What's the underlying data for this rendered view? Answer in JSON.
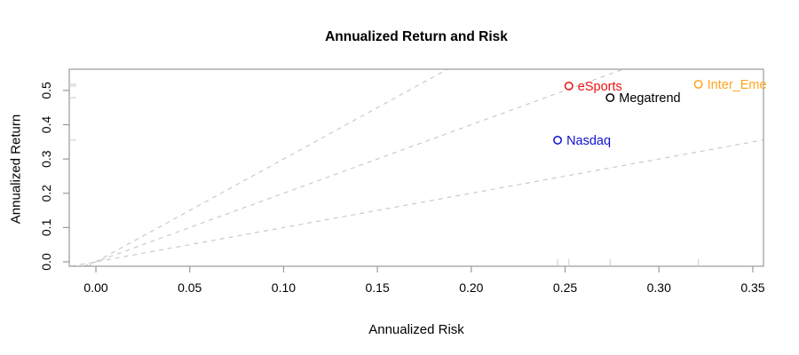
{
  "chart_data": {
    "type": "scatter",
    "title": "Annualized Return and Risk",
    "xlabel": "Annualized Risk",
    "ylabel": "Annualized Return",
    "xlim": [
      -0.0142,
      0.3557
    ],
    "ylim": [
      -0.013,
      0.562
    ],
    "grid": false,
    "legend": "none",
    "x_ticks": {
      "values": [
        0.0,
        0.05,
        0.1,
        0.15,
        0.2,
        0.25,
        0.3,
        0.35
      ],
      "labels": [
        "0.00",
        "0.05",
        "0.10",
        "0.15",
        "0.20",
        "0.25",
        "0.30",
        "0.35"
      ]
    },
    "y_ticks": {
      "values": [
        0.0,
        0.1,
        0.2,
        0.3,
        0.4,
        0.5
      ],
      "labels": [
        "0.0",
        "0.1",
        "0.2",
        "0.3",
        "0.4",
        "0.5"
      ]
    },
    "points": [
      {
        "name": "eSports",
        "x": 0.252,
        "y": 0.513,
        "color": "#ee1111"
      },
      {
        "name": "Megatrend",
        "x": 0.274,
        "y": 0.479,
        "color": "#000000"
      },
      {
        "name": "Nasdaq",
        "x": 0.246,
        "y": 0.355,
        "color": "#1111cd"
      },
      {
        "name": "Inter_Eme",
        "x": 0.321,
        "y": 0.518,
        "color": "#ffa41c"
      }
    ],
    "reference_lines": [
      {
        "name": "sharpe-1",
        "slope": 1,
        "intercept": 0
      },
      {
        "name": "sharpe-2",
        "slope": 2,
        "intercept": 0
      },
      {
        "name": "sharpe-3",
        "slope": 3,
        "intercept": 0
      }
    ],
    "rug": {
      "x_axis": true,
      "y_axis": true
    },
    "colors": {
      "axis": "#9a9a9a",
      "reference_line": "#c6c6c6",
      "rug": "#cfcfcf",
      "tick_label": "#000000"
    }
  }
}
